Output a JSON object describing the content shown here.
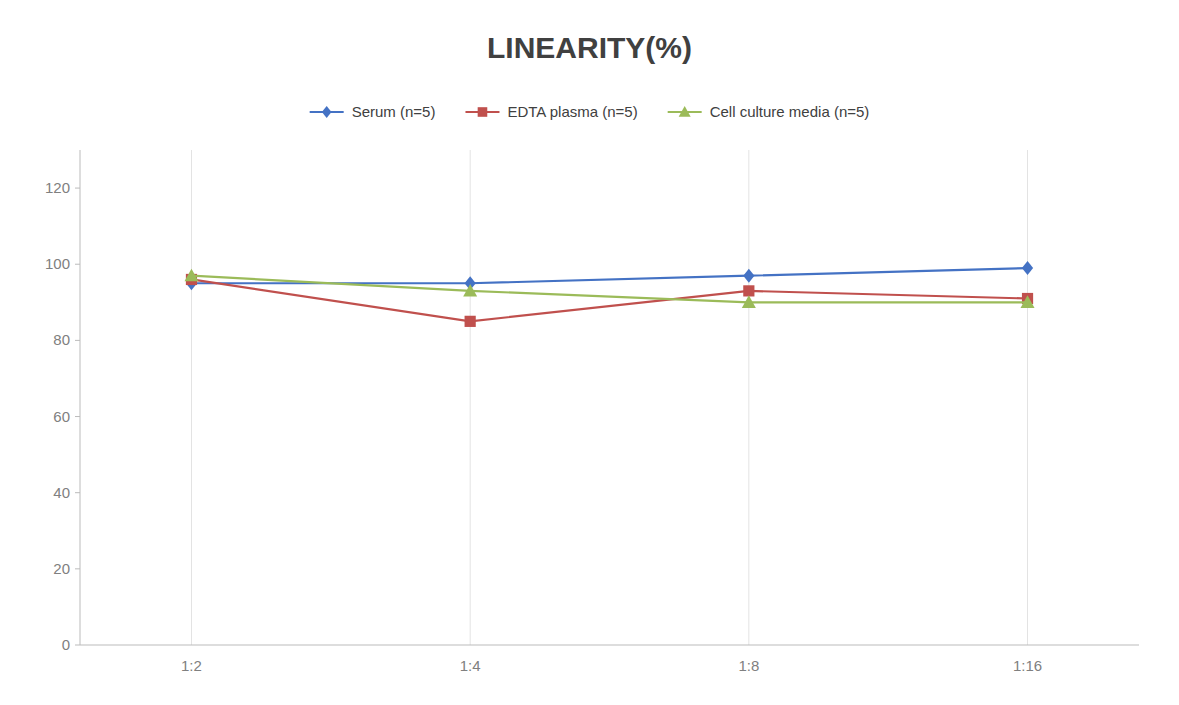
{
  "chart_data": {
    "type": "line",
    "title": "LINEARITY(%)",
    "categories": [
      "1:2",
      "1:4",
      "1:8",
      "1:16"
    ],
    "series": [
      {
        "name": "Serum (n=5)",
        "color": "#4472C4",
        "marker": "diamond",
        "values": [
          95,
          95,
          97,
          99
        ]
      },
      {
        "name": "EDTA plasma (n=5)",
        "color": "#C0504D",
        "marker": "square",
        "values": [
          96,
          85,
          93,
          91
        ]
      },
      {
        "name": "Cell culture media (n=5)",
        "color": "#9BBB59",
        "marker": "triangle",
        "values": [
          97,
          93,
          90,
          90
        ]
      }
    ],
    "ylim": [
      0,
      130
    ],
    "yticks": [
      0,
      20,
      40,
      60,
      80,
      100,
      120
    ],
    "grid": "x",
    "legend": "top"
  }
}
